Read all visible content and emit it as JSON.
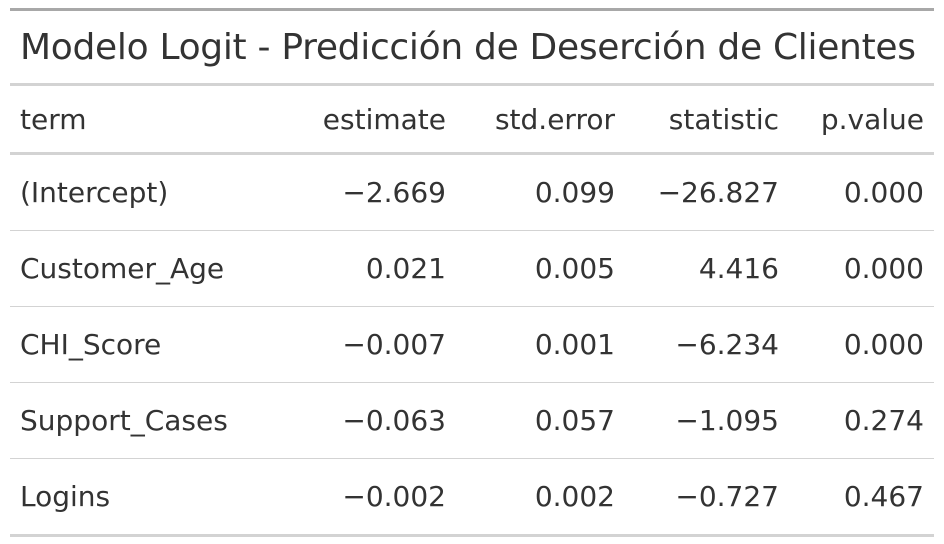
{
  "table": {
    "title": "Modelo Logit - Predicción de Deserción de Clientes",
    "columns": [
      "term",
      "estimate",
      "std.error",
      "statistic",
      "p.value"
    ],
    "rows": [
      {
        "term": "(Intercept)",
        "estimate": "−2.669",
        "std_error": "0.099",
        "statistic": "−26.827",
        "p_value": "0.000"
      },
      {
        "term": "Customer_Age",
        "estimate": "0.021",
        "std_error": "0.005",
        "statistic": "4.416",
        "p_value": "0.000"
      },
      {
        "term": "CHI_Score",
        "estimate": "−0.007",
        "std_error": "0.001",
        "statistic": "−6.234",
        "p_value": "0.000"
      },
      {
        "term": "Support_Cases",
        "estimate": "−0.063",
        "std_error": "0.057",
        "statistic": "−1.095",
        "p_value": "0.274"
      },
      {
        "term": "Logins",
        "estimate": "−0.002",
        "std_error": "0.002",
        "statistic": "−0.727",
        "p_value": "0.467"
      }
    ]
  }
}
